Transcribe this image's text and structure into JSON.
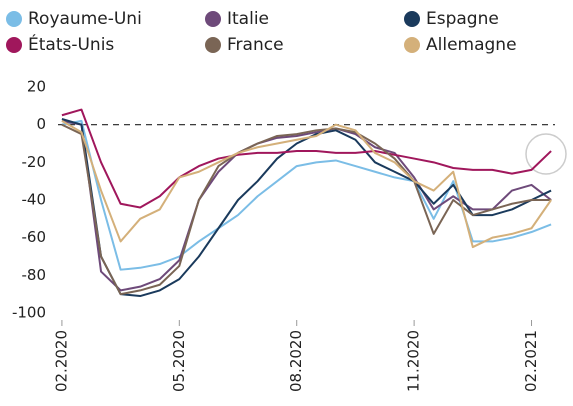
{
  "chart_data": {
    "type": "line",
    "x": [
      0,
      0.5,
      1,
      1.5,
      2,
      2.5,
      3,
      3.5,
      4,
      4.5,
      5,
      5.5,
      6,
      6.5,
      7,
      7.5,
      8,
      8.5,
      9,
      9.5,
      10,
      10.5,
      11,
      11.5,
      12,
      12.5
    ],
    "xlim": [
      -0.1,
      12.6
    ],
    "xticks": [
      {
        "value": 0,
        "label": "02.2020"
      },
      {
        "value": 3,
        "label": "05.2020"
      },
      {
        "value": 6,
        "label": "08.2020"
      },
      {
        "value": 9,
        "label": "11.2020"
      },
      {
        "value": 12,
        "label": "02.2021"
      }
    ],
    "ylim": [
      -100,
      20
    ],
    "yticks": [
      20,
      0,
      -20,
      -40,
      -60,
      -80,
      -100
    ],
    "zero_line": true,
    "series": [
      {
        "name": "Royaume-Uni",
        "color": "#7bbde6",
        "values": [
          0,
          2,
          -40,
          -77,
          -76,
          -74,
          -70,
          -62,
          -55,
          -48,
          -38,
          -30,
          -22,
          -20,
          -19,
          -22,
          -25,
          -28,
          -30,
          -50,
          -30,
          -62,
          -62,
          -60,
          -57,
          -53
        ]
      },
      {
        "name": "Italie",
        "color": "#6e4a7a",
        "values": [
          2,
          0,
          -78,
          -88,
          -86,
          -82,
          -72,
          -40,
          -25,
          -15,
          -10,
          -7,
          -6,
          -4,
          -2,
          -5,
          -12,
          -15,
          -28,
          -45,
          -38,
          -45,
          -45,
          -35,
          -32,
          -40
        ]
      },
      {
        "name": "Espagne",
        "color": "#1a3a5c",
        "values": [
          3,
          0,
          -70,
          -90,
          -91,
          -88,
          -82,
          -70,
          -55,
          -40,
          -30,
          -18,
          -10,
          -5,
          -3,
          -8,
          -20,
          -25,
          -30,
          -42,
          -32,
          -48,
          -48,
          -45,
          -40,
          -35
        ]
      },
      {
        "name": "États-Unis",
        "color": "#a0175c",
        "values": [
          5,
          8,
          -20,
          -42,
          -44,
          -38,
          -28,
          -22,
          -18,
          -16,
          -15,
          -15,
          -14,
          -14,
          -15,
          -15,
          -14,
          -16,
          -18,
          -20,
          -23,
          -24,
          -24,
          -26,
          -24,
          -14
        ]
      },
      {
        "name": "France",
        "color": "#7a6555",
        "values": [
          0,
          -5,
          -70,
          -90,
          -88,
          -85,
          -75,
          -40,
          -22,
          -15,
          -10,
          -6,
          -5,
          -3,
          -2,
          -4,
          -10,
          -18,
          -30,
          -58,
          -40,
          -48,
          -45,
          -42,
          -40,
          -40
        ]
      },
      {
        "name": "Allemagne",
        "color": "#d4b07a",
        "values": [
          2,
          -4,
          -35,
          -62,
          -50,
          -45,
          -28,
          -25,
          -20,
          -15,
          -12,
          -10,
          -8,
          -6,
          0,
          -3,
          -15,
          -20,
          -30,
          -35,
          -25,
          -65,
          -60,
          -58,
          -55,
          -40
        ]
      }
    ]
  }
}
